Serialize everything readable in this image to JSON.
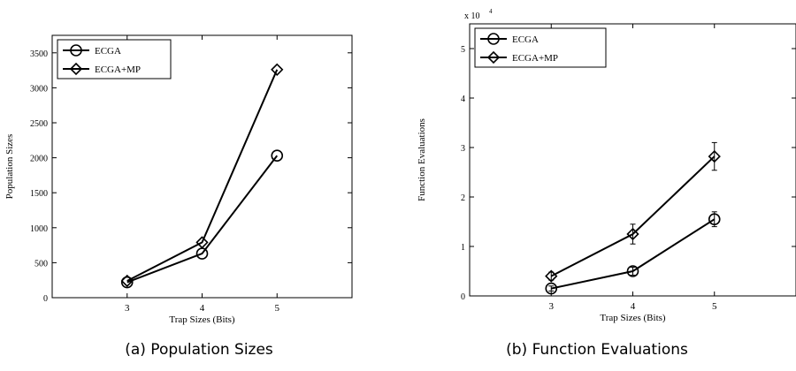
{
  "chart_data": [
    {
      "type": "line",
      "caption": "(a) Population Sizes",
      "title": "",
      "xlabel": "Trap Sizes (Bits)",
      "ylabel": "Population Sizes",
      "xlim": [
        2,
        6
      ],
      "ylim": [
        0,
        3750
      ],
      "xticks": [
        3,
        4,
        5
      ],
      "yticks": [
        0,
        500,
        1000,
        1500,
        2000,
        2500,
        3000,
        3500
      ],
      "x": [
        3,
        4,
        5
      ],
      "series": [
        {
          "name": "ECGA",
          "marker": "circle",
          "values": [
            220,
            630,
            2030
          ]
        },
        {
          "name": "ECGA+MP",
          "marker": "diamond",
          "values": [
            240,
            790,
            3260
          ]
        }
      ],
      "legend": "top-left",
      "grid": false
    },
    {
      "type": "line",
      "caption": "(b) Function Evaluations",
      "title": "",
      "xlabel": "Trap Sizes (Bits)",
      "ylabel": "Function Evaluations",
      "y_exponent_label": "x 10",
      "y_exponent": "4",
      "xlim": [
        2,
        6
      ],
      "ylim": [
        0,
        5.5
      ],
      "xticks": [
        3,
        4,
        5
      ],
      "yticks": [
        0,
        1,
        2,
        3,
        4,
        5
      ],
      "x": [
        3,
        4,
        5
      ],
      "series": [
        {
          "name": "ECGA",
          "marker": "circle",
          "values": [
            0.15,
            0.5,
            1.55
          ],
          "errors": [
            0.05,
            0.08,
            0.15
          ]
        },
        {
          "name": "ECGA+MP",
          "marker": "diamond",
          "values": [
            0.4,
            1.25,
            2.82
          ],
          "errors": [
            0.08,
            0.2,
            0.28
          ]
        }
      ],
      "legend": "top-left",
      "grid": false
    }
  ]
}
